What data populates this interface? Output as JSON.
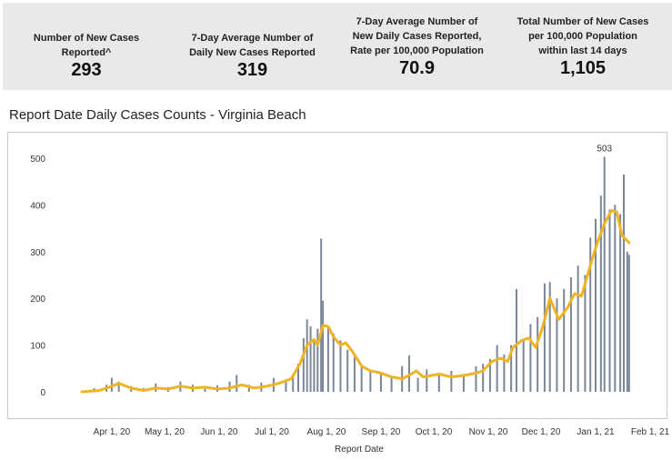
{
  "kpis": [
    {
      "label_lines": [
        "Number of New Cases",
        "Reported^"
      ],
      "value": "293"
    },
    {
      "label_lines": [
        "7-Day Average Number of",
        "Daily New Cases Reported"
      ],
      "value": "319"
    },
    {
      "label_lines": [
        "7-Day Average Number of",
        "New Daily Cases Reported,",
        "Rate per 100,000 Population"
      ],
      "value": "70.9"
    },
    {
      "label_lines": [
        "Total Number of New Cases",
        "per 100,000 Population",
        "within last 14 days"
      ],
      "value": "1,105"
    }
  ],
  "chart_title": "Report Date Daily Cases Counts - Virginia Beach",
  "chart_data": {
    "type": "bar",
    "title": "Report Date Daily Cases Counts - Virginia Beach",
    "xlabel": "Report Date",
    "ylabel": "",
    "ylim": [
      0,
      520
    ],
    "yticks": [
      0,
      100,
      200,
      300,
      400,
      500
    ],
    "xticks": [
      "Apr 1, 20",
      "May 1, 20",
      "Jun 1, 20",
      "Jul 1, 20",
      "Aug 1, 20",
      "Sep 1, 20",
      "Oct 1, 20",
      "Nov 1, 20",
      "Dec 1, 20",
      "Jan 1, 21",
      "Feb 1, 21"
    ],
    "x_range": [
      "2020-03-15",
      "2021-02-01"
    ],
    "grid": false,
    "annotation": {
      "label": "503",
      "value": 503
    },
    "colors": {
      "bars": "#7b8799",
      "line": "#f0b323"
    },
    "series": [
      {
        "kind": "bar",
        "points": [
          [
            "2020-03-15",
            2
          ],
          [
            "2020-03-22",
            8
          ],
          [
            "2020-03-29",
            15
          ],
          [
            "2020-04-01",
            30
          ],
          [
            "2020-04-05",
            22
          ],
          [
            "2020-04-12",
            12
          ],
          [
            "2020-04-19",
            8
          ],
          [
            "2020-04-26",
            18
          ],
          [
            "2020-05-03",
            10
          ],
          [
            "2020-05-10",
            22
          ],
          [
            "2020-05-17",
            15
          ],
          [
            "2020-05-24",
            10
          ],
          [
            "2020-05-31",
            14
          ],
          [
            "2020-06-07",
            22
          ],
          [
            "2020-06-11",
            36
          ],
          [
            "2020-06-18",
            15
          ],
          [
            "2020-06-25",
            20
          ],
          [
            "2020-07-02",
            30
          ],
          [
            "2020-07-09",
            22
          ],
          [
            "2020-07-13",
            38
          ],
          [
            "2020-07-16",
            60
          ],
          [
            "2020-07-19",
            115
          ],
          [
            "2020-07-21",
            155
          ],
          [
            "2020-07-23",
            140
          ],
          [
            "2020-07-25",
            110
          ],
          [
            "2020-07-27",
            135
          ],
          [
            "2020-07-29",
            328
          ],
          [
            "2020-07-30",
            195
          ],
          [
            "2020-08-02",
            140
          ],
          [
            "2020-08-05",
            125
          ],
          [
            "2020-08-09",
            110
          ],
          [
            "2020-08-13",
            90
          ],
          [
            "2020-08-17",
            75
          ],
          [
            "2020-08-21",
            55
          ],
          [
            "2020-08-26",
            45
          ],
          [
            "2020-09-01",
            40
          ],
          [
            "2020-09-07",
            30
          ],
          [
            "2020-09-13",
            55
          ],
          [
            "2020-09-17",
            78
          ],
          [
            "2020-09-22",
            30
          ],
          [
            "2020-09-27",
            48
          ],
          [
            "2020-10-04",
            40
          ],
          [
            "2020-10-11",
            45
          ],
          [
            "2020-10-18",
            35
          ],
          [
            "2020-10-25",
            55
          ],
          [
            "2020-10-29",
            60
          ],
          [
            "2020-11-02",
            70
          ],
          [
            "2020-11-06",
            100
          ],
          [
            "2020-11-10",
            80
          ],
          [
            "2020-11-14",
            100
          ],
          [
            "2020-11-17",
            220
          ],
          [
            "2020-11-21",
            110
          ],
          [
            "2020-11-25",
            145
          ],
          [
            "2020-11-29",
            160
          ],
          [
            "2020-12-03",
            232
          ],
          [
            "2020-12-06",
            235
          ],
          [
            "2020-12-10",
            200
          ],
          [
            "2020-12-14",
            220
          ],
          [
            "2020-12-18",
            245
          ],
          [
            "2020-12-22",
            270
          ],
          [
            "2020-12-26",
            250
          ],
          [
            "2020-12-29",
            330
          ],
          [
            "2021-01-01",
            370
          ],
          [
            "2021-01-04",
            420
          ],
          [
            "2021-01-06",
            503
          ],
          [
            "2021-01-09",
            390
          ],
          [
            "2021-01-12",
            400
          ],
          [
            "2021-01-15",
            380
          ],
          [
            "2021-01-17",
            465
          ],
          [
            "2021-01-19",
            300
          ],
          [
            "2021-01-20",
            293
          ]
        ]
      },
      {
        "kind": "line",
        "points": [
          [
            "2020-03-15",
            0
          ],
          [
            "2020-03-25",
            3
          ],
          [
            "2020-04-01",
            12
          ],
          [
            "2020-04-05",
            18
          ],
          [
            "2020-04-12",
            8
          ],
          [
            "2020-04-19",
            3
          ],
          [
            "2020-04-26",
            8
          ],
          [
            "2020-05-03",
            6
          ],
          [
            "2020-05-10",
            12
          ],
          [
            "2020-05-17",
            8
          ],
          [
            "2020-05-24",
            10
          ],
          [
            "2020-05-31",
            6
          ],
          [
            "2020-06-07",
            8
          ],
          [
            "2020-06-14",
            15
          ],
          [
            "2020-06-21",
            8
          ],
          [
            "2020-06-28",
            12
          ],
          [
            "2020-07-05",
            18
          ],
          [
            "2020-07-12",
            28
          ],
          [
            "2020-07-17",
            60
          ],
          [
            "2020-07-21",
            100
          ],
          [
            "2020-07-25",
            112
          ],
          [
            "2020-07-27",
            100
          ],
          [
            "2020-07-30",
            142
          ],
          [
            "2020-08-02",
            140
          ],
          [
            "2020-08-05",
            118
          ],
          [
            "2020-08-09",
            100
          ],
          [
            "2020-08-12",
            105
          ],
          [
            "2020-08-16",
            85
          ],
          [
            "2020-08-21",
            55
          ],
          [
            "2020-08-26",
            45
          ],
          [
            "2020-09-01",
            40
          ],
          [
            "2020-09-07",
            32
          ],
          [
            "2020-09-13",
            28
          ],
          [
            "2020-09-17",
            35
          ],
          [
            "2020-09-21",
            45
          ],
          [
            "2020-09-25",
            32
          ],
          [
            "2020-10-04",
            38
          ],
          [
            "2020-10-11",
            32
          ],
          [
            "2020-10-18",
            35
          ],
          [
            "2020-10-25",
            40
          ],
          [
            "2020-10-29",
            45
          ],
          [
            "2020-11-03",
            65
          ],
          [
            "2020-11-08",
            72
          ],
          [
            "2020-11-12",
            65
          ],
          [
            "2020-11-15",
            95
          ],
          [
            "2020-11-20",
            110
          ],
          [
            "2020-11-24",
            115
          ],
          [
            "2020-11-28",
            95
          ],
          [
            "2020-12-02",
            140
          ],
          [
            "2020-12-06",
            200
          ],
          [
            "2020-12-11",
            155
          ],
          [
            "2020-12-16",
            180
          ],
          [
            "2020-12-20",
            210
          ],
          [
            "2020-12-24",
            205
          ],
          [
            "2020-12-29",
            270
          ],
          [
            "2021-01-02",
            320
          ],
          [
            "2021-01-06",
            360
          ],
          [
            "2021-01-10",
            388
          ],
          [
            "2021-01-13",
            385
          ],
          [
            "2021-01-16",
            335
          ],
          [
            "2021-01-20",
            319
          ]
        ]
      }
    ]
  }
}
